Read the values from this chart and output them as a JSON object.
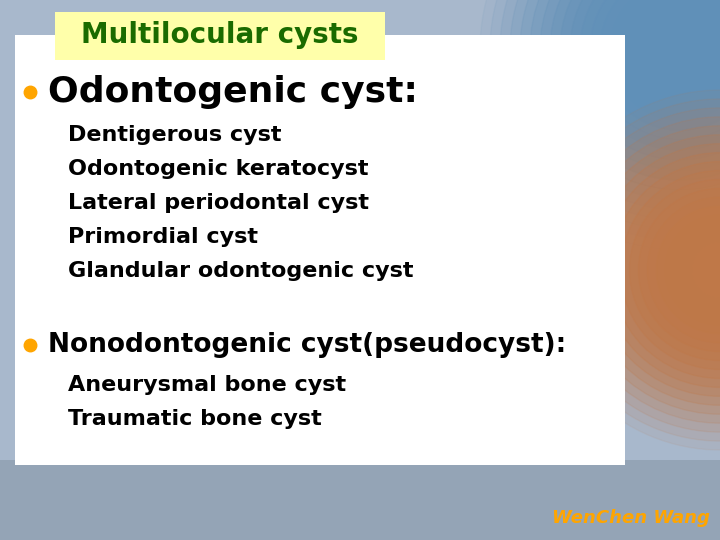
{
  "title": "Multilocular cysts",
  "title_color": "#1a6b00",
  "title_bg_color": "#FFFFAA",
  "title_fontsize": 20,
  "title_fontstyle": "bold",
  "bullet_color": "#FFA500",
  "bullet1_text": "Odontogenic cyst:",
  "bullet1_fontsize": 26,
  "bullet1_color": "#000000",
  "bullet1_fontstyle": "bold",
  "sub_items1": [
    "Dentigerous cyst",
    "Odontogenic keratocyst",
    "Lateral periodontal cyst",
    "Primordial cyst",
    "Glandular odontogenic cyst"
  ],
  "sub_fontsize": 16,
  "sub_color": "#000000",
  "sub_fontstyle": "bold",
  "bullet2_text": "Nonodontogenic cyst(pseudocyst):",
  "bullet2_fontsize": 19,
  "bullet2_color": "#000000",
  "bullet2_fontstyle": "bold",
  "sub_items2": [
    "Aneurysmal bone cyst",
    "Traumatic bone cyst"
  ],
  "watermark_text": "WenChen Wang",
  "watermark_color": "#FFA500",
  "watermark_fontsize": 13,
  "content_bg_color": "#FFFFFF",
  "slide_bg_color": "#A8B8CC",
  "fig_width": 7.2,
  "fig_height": 5.4
}
